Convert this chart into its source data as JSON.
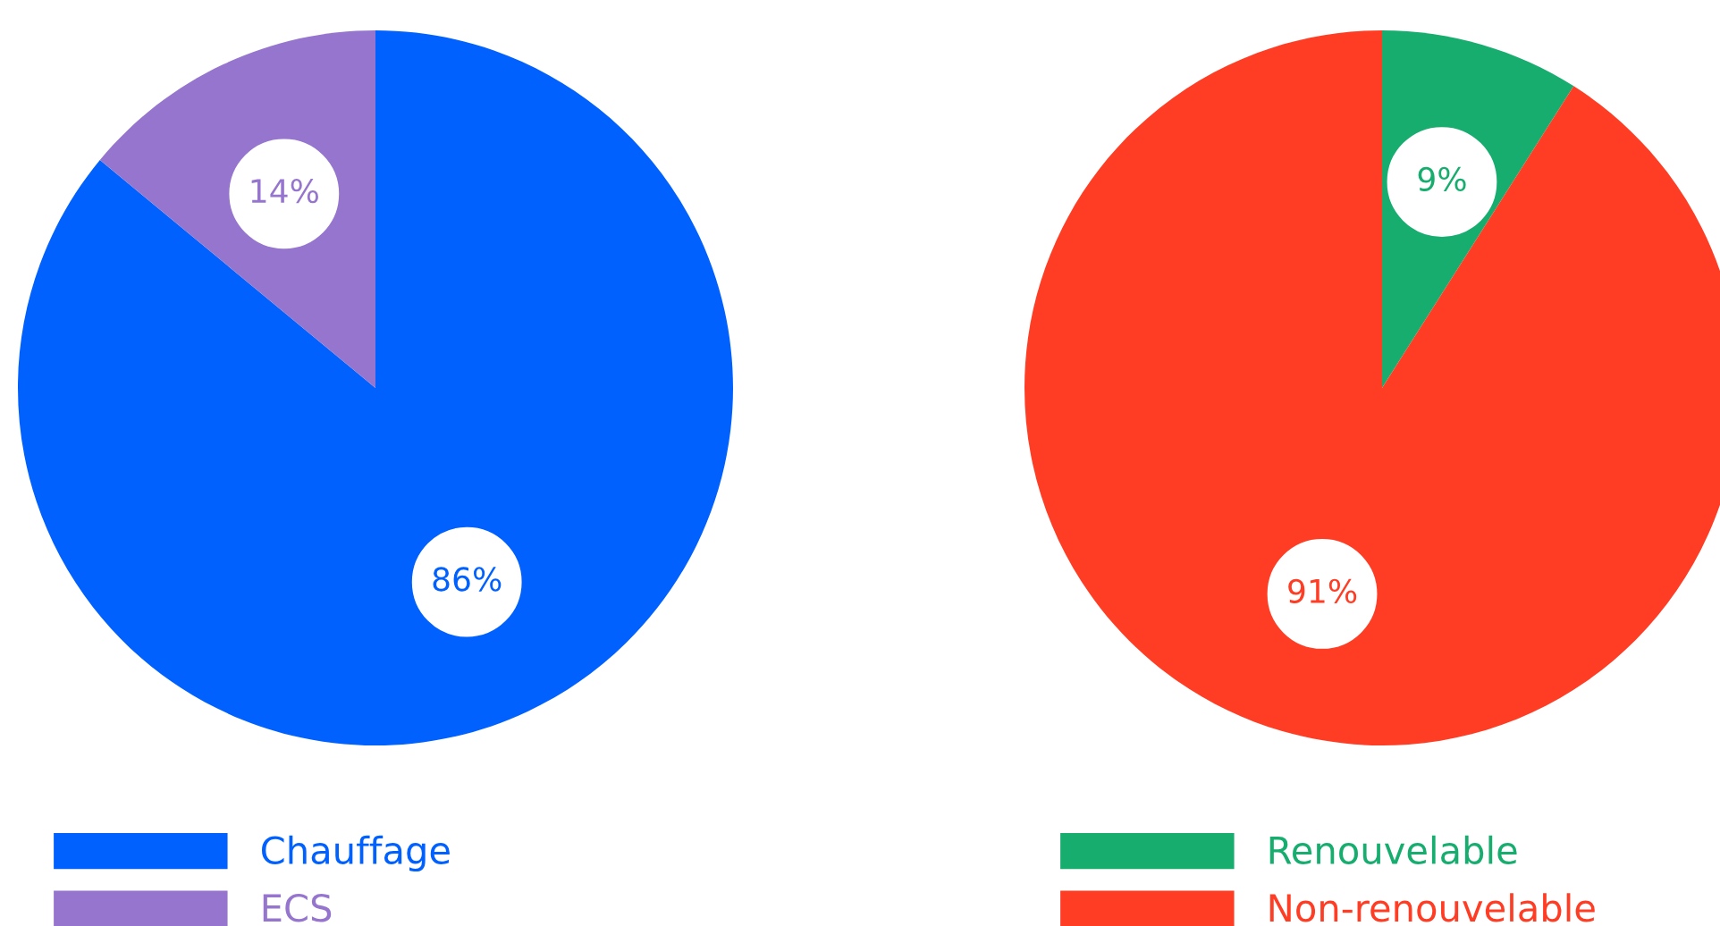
{
  "chart_data": [
    {
      "type": "pie",
      "categories": [
        "Chauffage",
        "ECS"
      ],
      "values": [
        86,
        14
      ],
      "colors": [
        "#0061ff",
        "#9575cd"
      ],
      "value_labels": [
        "86%",
        "14%"
      ],
      "legend": "bottom"
    },
    {
      "type": "pie",
      "categories": [
        "Renouvelable",
        "Non-renouvelable"
      ],
      "values": [
        9,
        91
      ],
      "colors": [
        "#17ad6e",
        "#ff3d24"
      ],
      "value_labels": [
        "9%",
        "91%"
      ],
      "legend": "bottom"
    }
  ]
}
